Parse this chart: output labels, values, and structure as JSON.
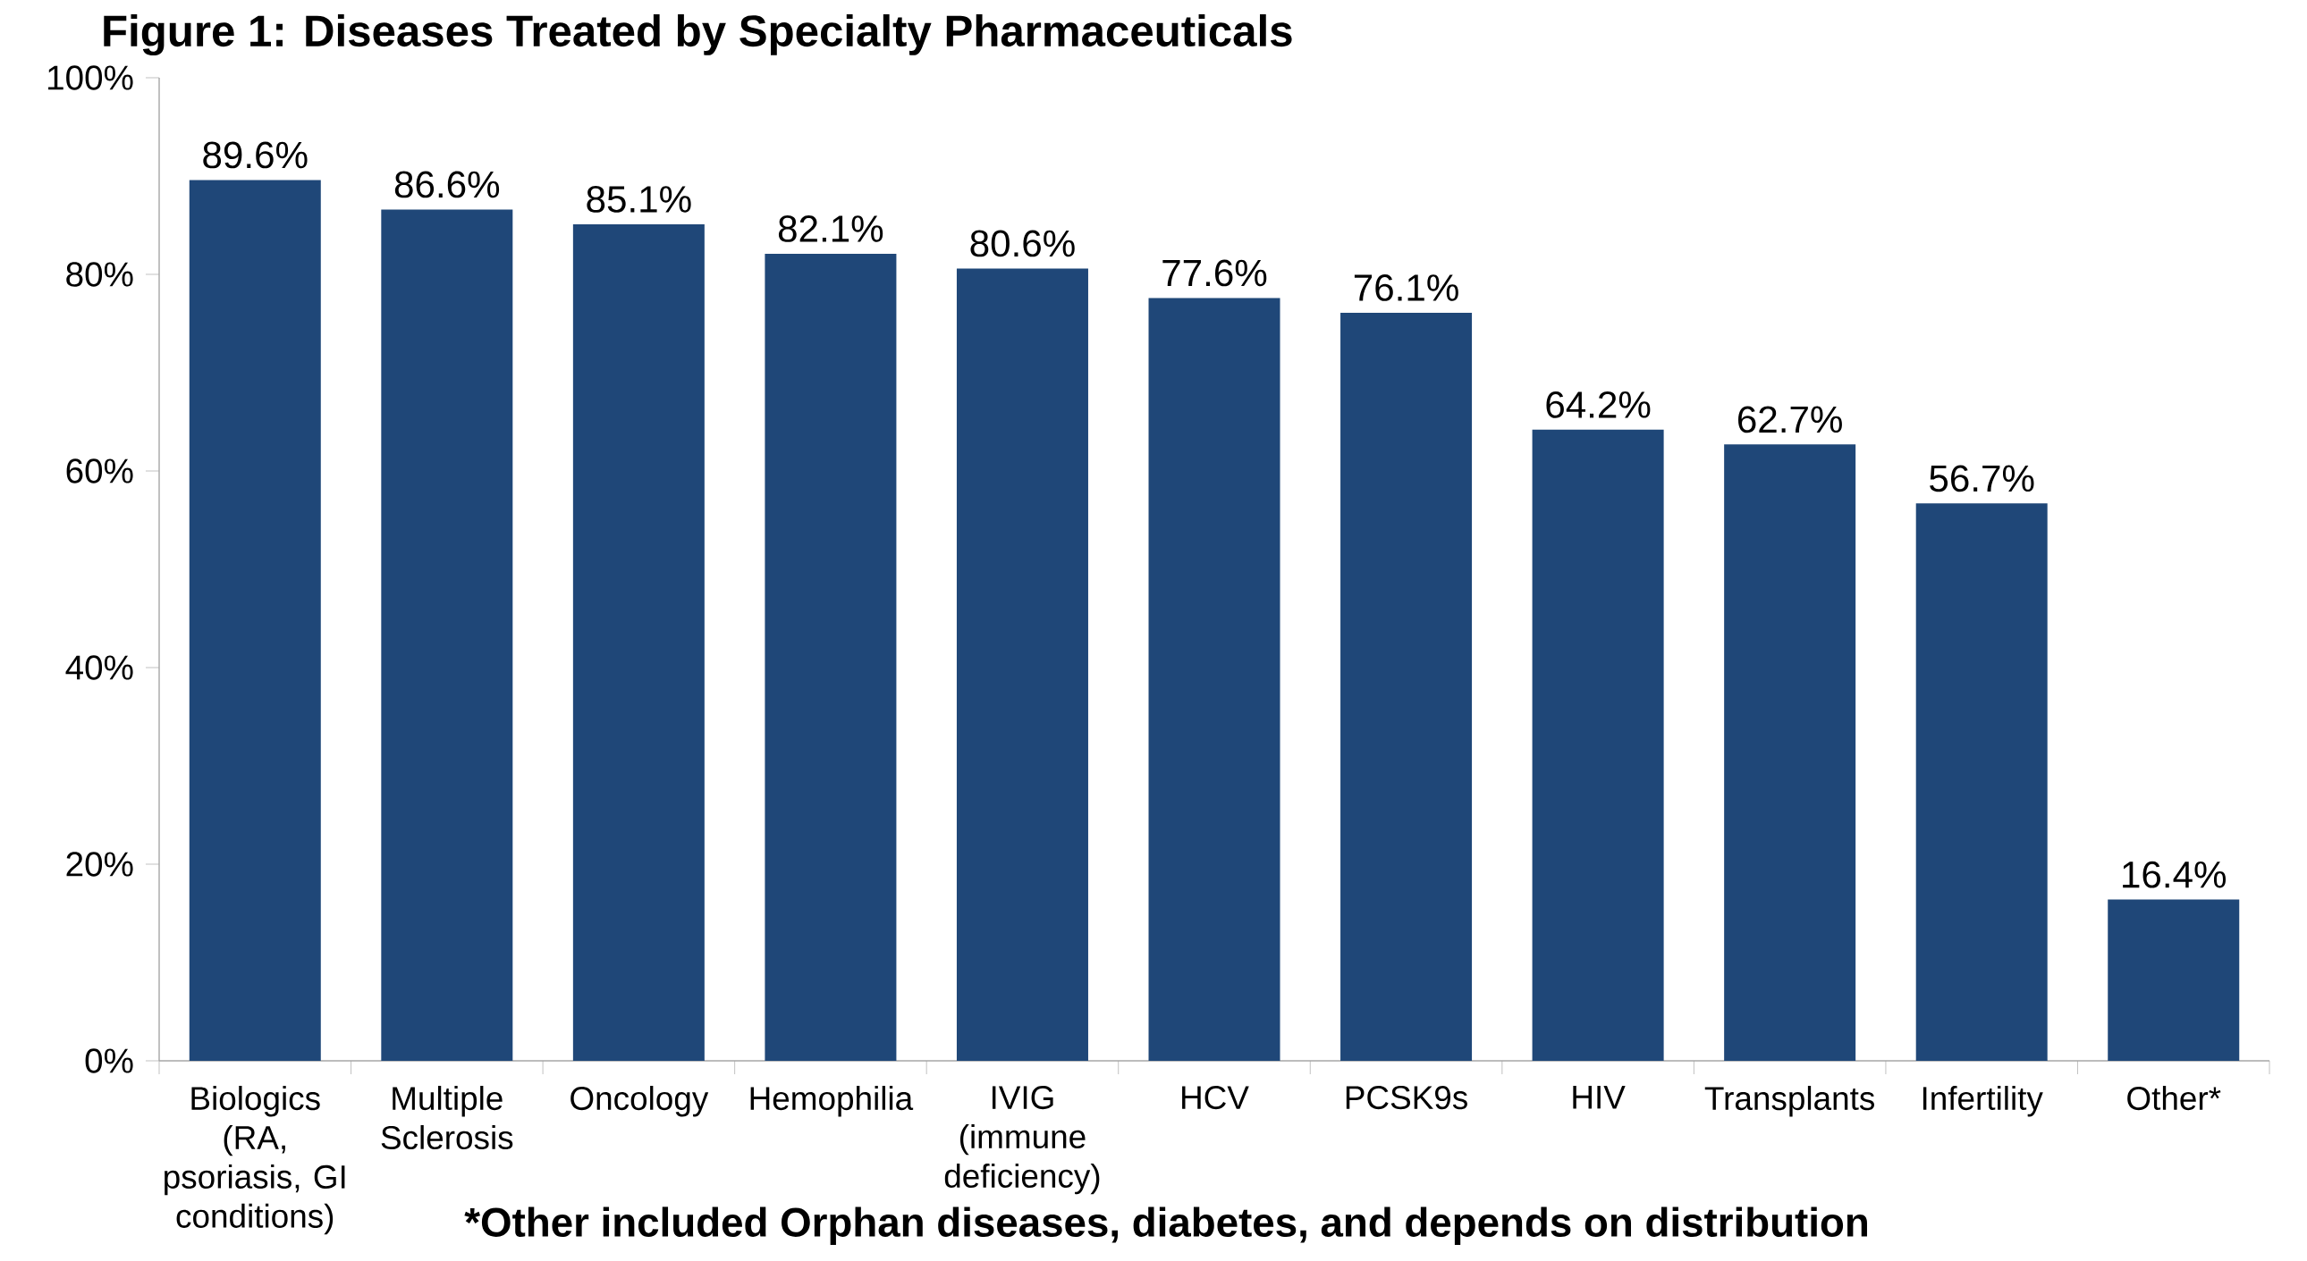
{
  "chart_data": {
    "type": "bar",
    "title": "Figure 1: Diseases Treated by Specialty Pharmaceuticals",
    "categories": [
      "Biologics (RA, psoriasis, GI conditions)",
      "Multiple Sclerosis",
      "Oncology",
      "Hemophilia",
      "IVIG (immune deficiency)",
      "HCV",
      "PCSK9s",
      "HIV",
      "Transplants",
      "Infertility",
      "Other*"
    ],
    "values": [
      89.6,
      86.6,
      85.1,
      82.1,
      80.6,
      77.6,
      76.1,
      64.2,
      62.7,
      56.7,
      16.4
    ],
    "value_labels": [
      "89.6%",
      "86.6%",
      "85.1%",
      "82.1%",
      "80.6%",
      "77.6%",
      "76.1%",
      "64.2%",
      "62.7%",
      "56.7%",
      "16.4%"
    ],
    "color": "#1f4778",
    "ylim": [
      0,
      100
    ],
    "yticks": [
      {
        "value": 0,
        "label": "0%"
      },
      {
        "value": 20,
        "label": "20%"
      },
      {
        "value": 40,
        "label": "40%"
      },
      {
        "value": 60,
        "label": "60%"
      },
      {
        "value": 80,
        "label": "80%"
      },
      {
        "value": 100,
        "label": "100%"
      }
    ],
    "grid": false,
    "annotations": [
      "*Other included Orphan diseases, diabetes, and depends on distribution"
    ]
  }
}
